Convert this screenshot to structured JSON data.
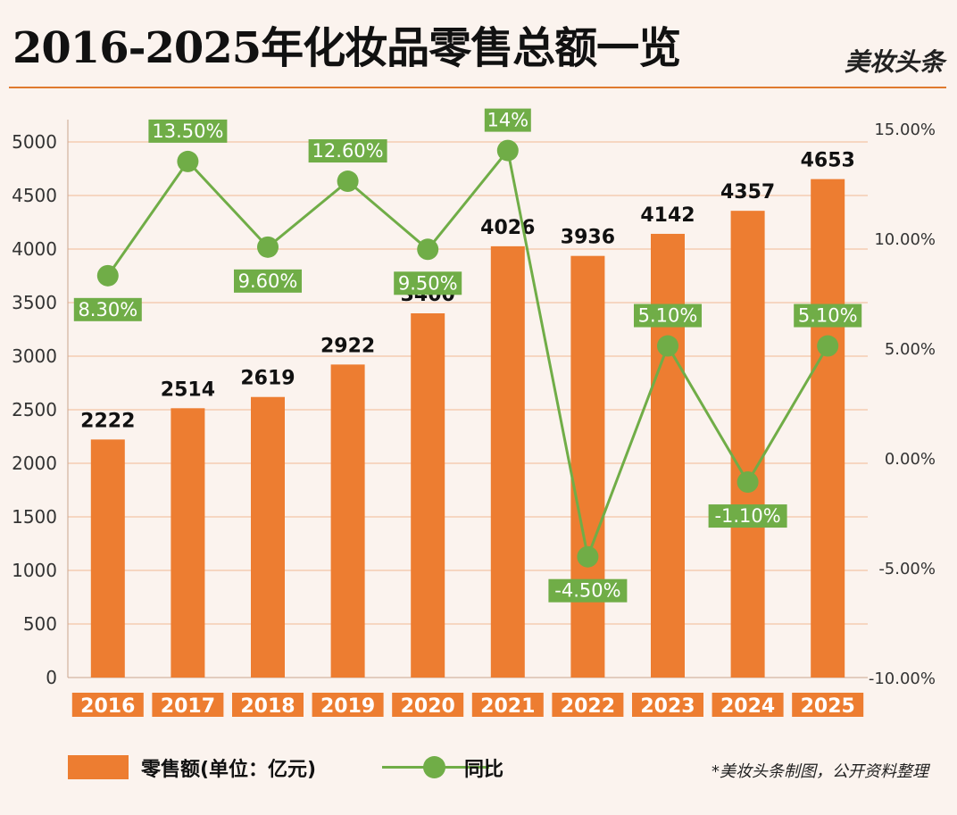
{
  "header": {
    "title": "2016-2025年化妆品零售总额一览",
    "brand": "美妆头条"
  },
  "legend": {
    "bar_label": "零售额(单位：亿元)",
    "line_label": "同比"
  },
  "source": "*美妆头条制图，公开资料整理",
  "colors": {
    "bar": "#ed7d31",
    "line": "#70ad47",
    "grid": "#f2b894",
    "background": "#fbf3ee"
  },
  "chart_data": {
    "type": "bar+line",
    "categories": [
      "2016",
      "2017",
      "2018",
      "2019",
      "2020",
      "2021",
      "2022",
      "2023",
      "2024",
      "2025"
    ],
    "series": [
      {
        "name": "零售额(单位：亿元)",
        "type": "bar",
        "axis": "left",
        "values": [
          2222,
          2514,
          2619,
          2922,
          3400,
          4026,
          3936,
          4142,
          4357,
          4653
        ],
        "labels": [
          "2222",
          "2514",
          "2619",
          "2922",
          "3400",
          "4026",
          "3936",
          "4142",
          "4357",
          "4653"
        ]
      },
      {
        "name": "同比",
        "type": "line",
        "axis": "right",
        "values": [
          8.3,
          13.5,
          9.6,
          12.6,
          9.5,
          14,
          -4.5,
          5.1,
          -1.1,
          5.1
        ],
        "labels": [
          "8.30%",
          "13.50%",
          "9.60%",
          "12.60%",
          "9.50%",
          "14%",
          "-4.50%",
          "5.10%",
          "-1.10%",
          "5.10%"
        ]
      }
    ],
    "y_left": {
      "range": [
        0,
        5000
      ],
      "ticks": [
        "0",
        "500",
        "1000",
        "1500",
        "2000",
        "2500",
        "3000",
        "3500",
        "4000",
        "4500",
        "5000"
      ]
    },
    "y_right": {
      "range": [
        -10,
        15
      ],
      "ticks": [
        "-10.00%",
        "-5.00%",
        "0.00%",
        "5.00%",
        "10.00%",
        "15.00%"
      ]
    },
    "grid": true,
    "legend_position": "bottom"
  }
}
